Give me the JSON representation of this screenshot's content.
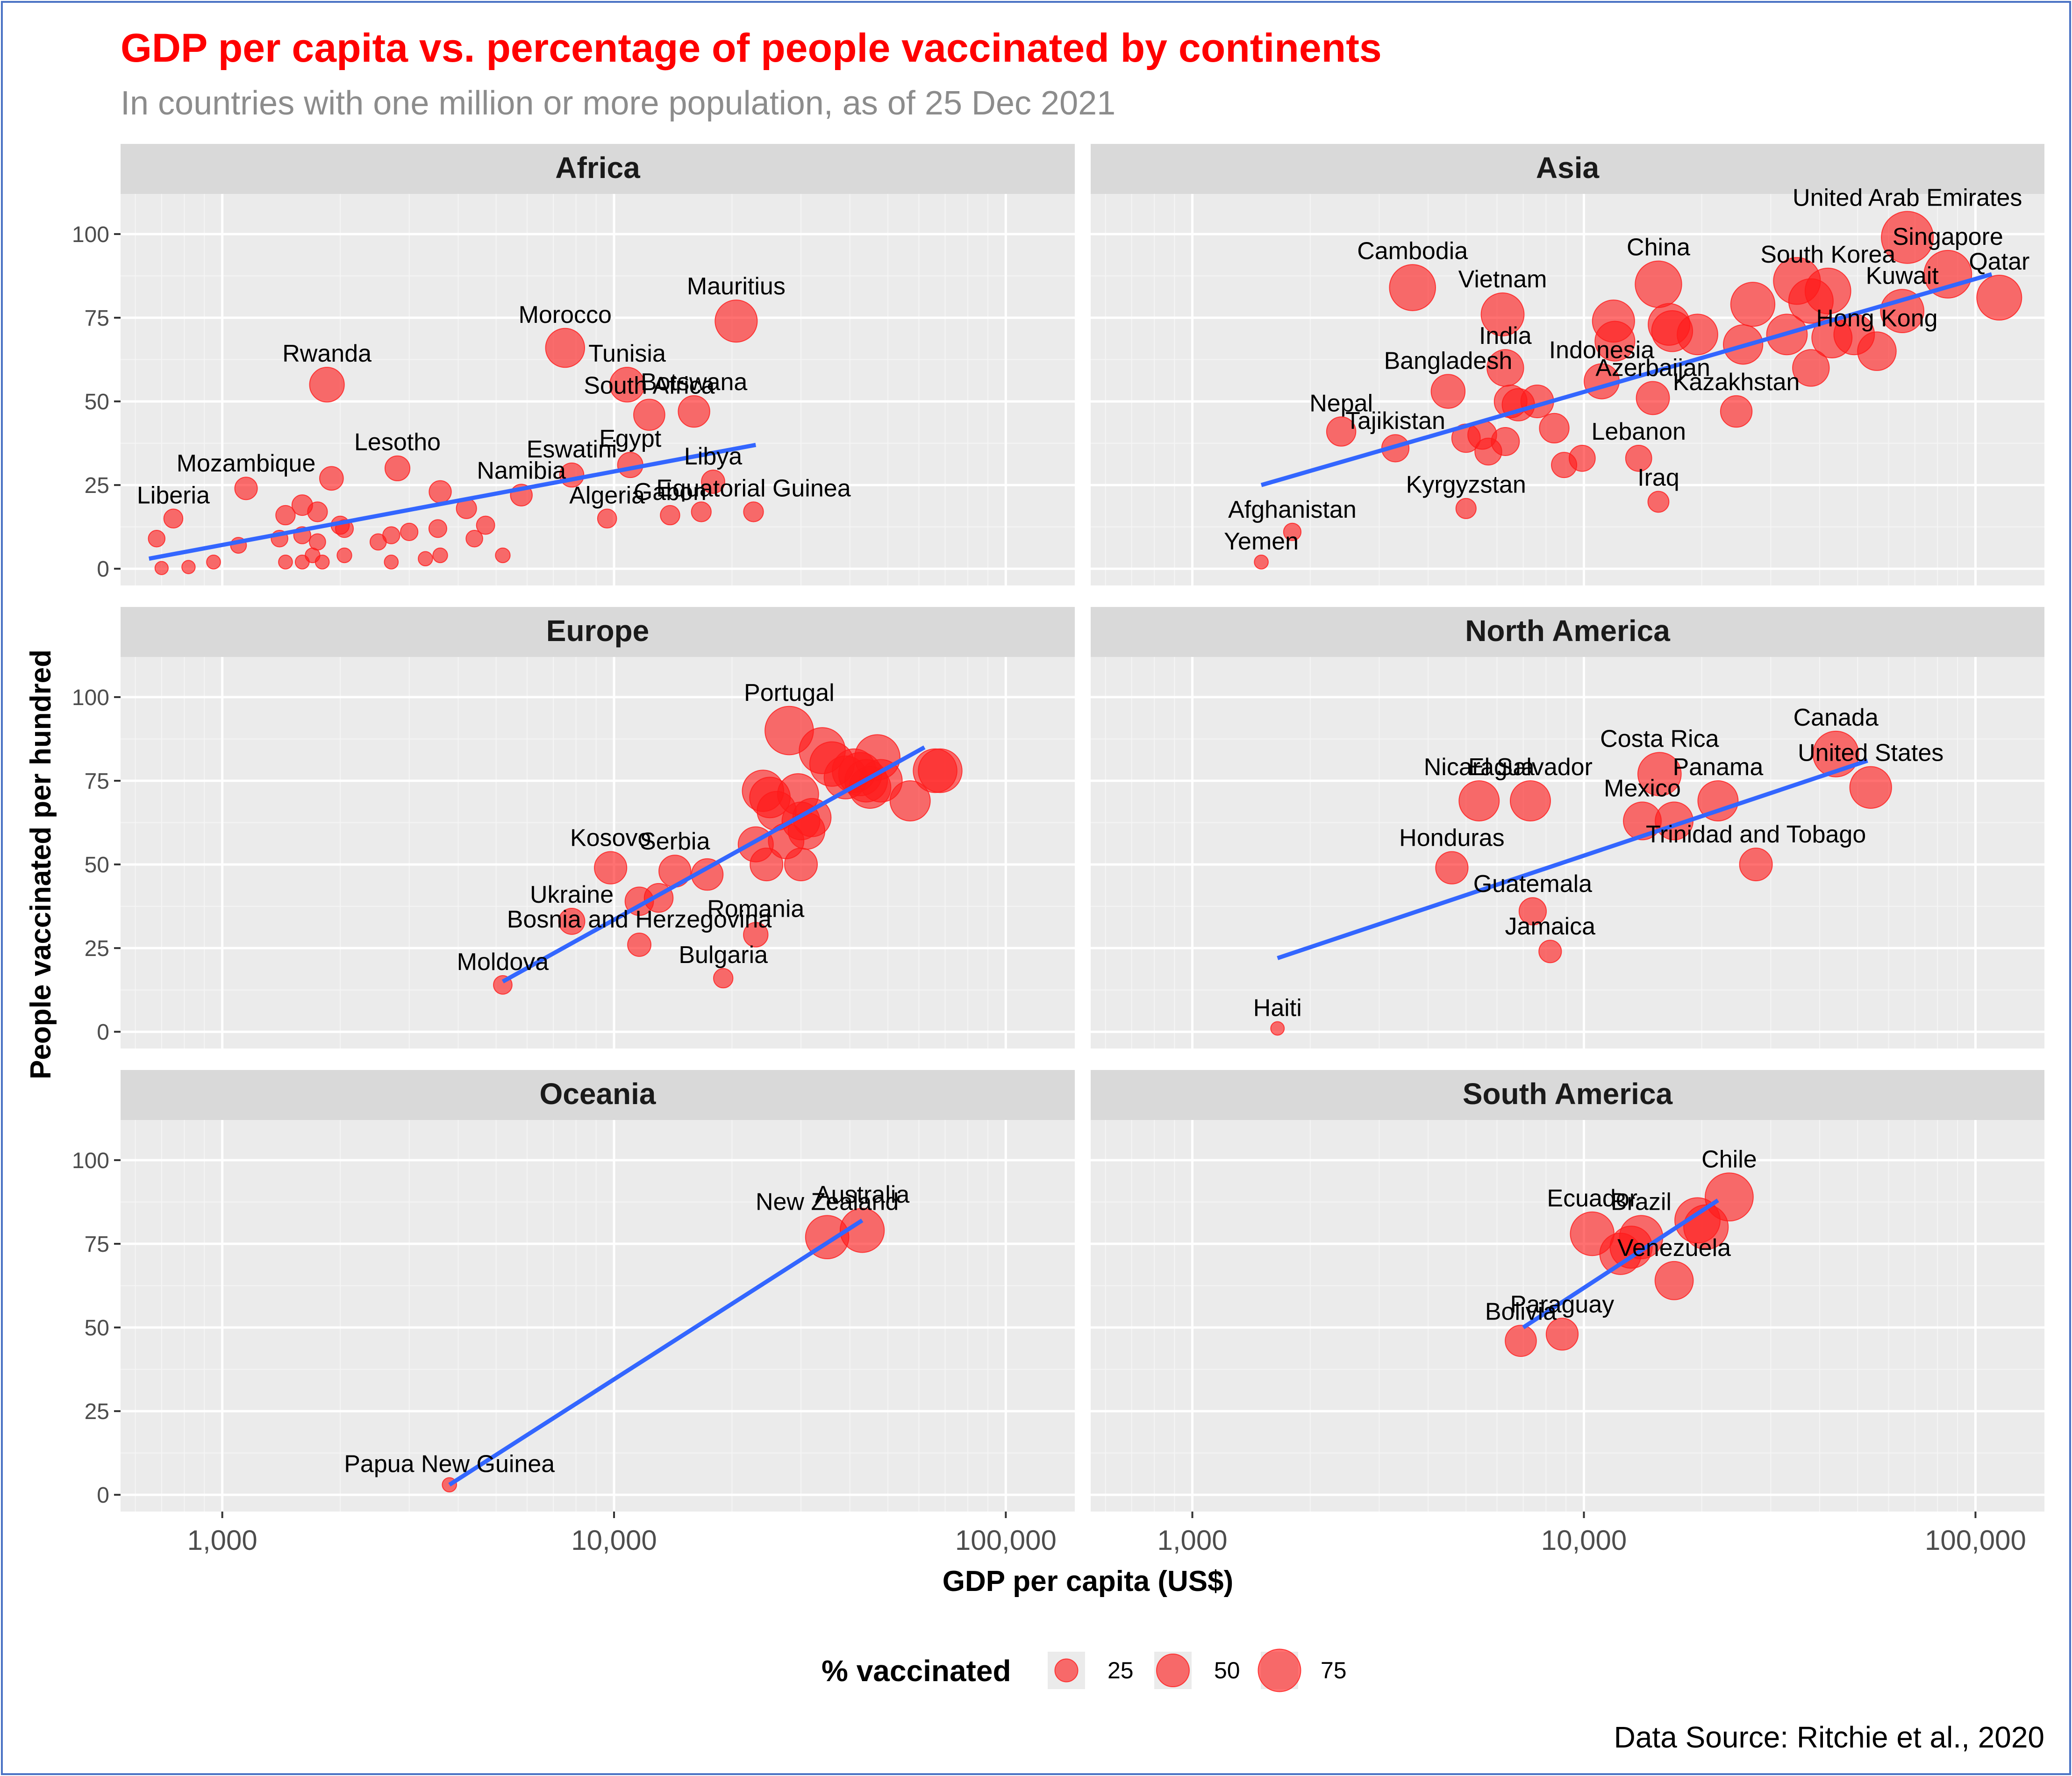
{
  "chart_data": {
    "type": "scatter",
    "title": "GDP per capita vs. percentage of people vaccinated by continents",
    "subtitle": "In countries with one million or more population, as of 25 Dec 2021",
    "xlabel": "GDP per capita (US$)",
    "ylabel": "People vaccinated per hundred",
    "x_scale": "log10",
    "xlim": [
      550,
      150000
    ],
    "ylim": [
      -5,
      112
    ],
    "x_ticks": [
      1000,
      10000,
      100000
    ],
    "x_tick_labels": [
      "1,000",
      "10,000",
      "100,000"
    ],
    "y_ticks": [
      0,
      25,
      50,
      75,
      100
    ],
    "y_tick_labels": [
      "0",
      "25",
      "50",
      "75",
      "100"
    ],
    "legend_title": "% vaccinated",
    "legend_position": "bottom",
    "legend_entries": [
      {
        "value": 25,
        "label": "25"
      },
      {
        "value": 50,
        "label": "50"
      },
      {
        "value": 75,
        "label": "75"
      }
    ],
    "caption": "Data Source: Ritchie et al., 2020",
    "colors": {
      "points": "#ff1a1a",
      "trend": "#3366ff",
      "title": "#ff0000",
      "subtitle": "#8c8c8c",
      "panel_bg": "#ebebeb",
      "strip_bg": "#d9d9d9"
    },
    "panels": [
      {
        "name": "Africa",
        "trend": {
          "x": [
            650,
            23000
          ],
          "y": [
            3,
            37
          ]
        },
        "points": [
          {
            "label": "Mauritius",
            "x": 20500,
            "y": 74
          },
          {
            "label": "Morocco",
            "x": 7500,
            "y": 66
          },
          {
            "label": "Tunisia",
            "x": 10800,
            "y": 55
          },
          {
            "label": "Rwanda",
            "x": 1850,
            "y": 55
          },
          {
            "label": "Botswana",
            "x": 16000,
            "y": 47
          },
          {
            "label": "South Africa",
            "x": 12300,
            "y": 46
          },
          {
            "label": "Lesotho",
            "x": 2800,
            "y": 30
          },
          {
            "label": "Egypt",
            "x": 11000,
            "y": 31
          },
          {
            "label": "Eswatini",
            "x": 7800,
            "y": 28
          },
          {
            "label": "Libya",
            "x": 17900,
            "y": 26
          },
          {
            "label": "Mozambique",
            "x": 1150,
            "y": 24
          },
          {
            "label": "Namibia",
            "x": 5800,
            "y": 22
          },
          {
            "label": "Gabon",
            "x": 13900,
            "y": 16
          },
          {
            "label": "Equatorial Guinea",
            "x": 22700,
            "y": 17
          },
          {
            "label": "Algeria",
            "x": 9600,
            "y": 15
          },
          {
            "label": "Liberia",
            "x": 750,
            "y": 15
          },
          {
            "label": "",
            "x": 16700,
            "y": 17
          },
          {
            "label": "",
            "x": 3600,
            "y": 23
          },
          {
            "label": "",
            "x": 1900,
            "y": 27
          },
          {
            "label": "",
            "x": 4200,
            "y": 18
          },
          {
            "label": "",
            "x": 4700,
            "y": 13
          },
          {
            "label": "",
            "x": 1600,
            "y": 19
          },
          {
            "label": "",
            "x": 1750,
            "y": 17
          },
          {
            "label": "",
            "x": 1450,
            "y": 16
          },
          {
            "label": "",
            "x": 2000,
            "y": 13
          },
          {
            "label": "",
            "x": 2050,
            "y": 12
          },
          {
            "label": "",
            "x": 3000,
            "y": 11
          },
          {
            "label": "",
            "x": 2700,
            "y": 10
          },
          {
            "label": "",
            "x": 3550,
            "y": 12
          },
          {
            "label": "",
            "x": 4400,
            "y": 9
          },
          {
            "label": "",
            "x": 680,
            "y": 9
          },
          {
            "label": "",
            "x": 1100,
            "y": 7
          },
          {
            "label": "",
            "x": 1400,
            "y": 9
          },
          {
            "label": "",
            "x": 1600,
            "y": 10
          },
          {
            "label": "",
            "x": 2500,
            "y": 8
          },
          {
            "label": "",
            "x": 1750,
            "y": 8
          },
          {
            "label": "",
            "x": 1700,
            "y": 4
          },
          {
            "label": "",
            "x": 2050,
            "y": 4
          },
          {
            "label": "",
            "x": 3600,
            "y": 4
          },
          {
            "label": "",
            "x": 5200,
            "y": 4
          },
          {
            "label": "",
            "x": 1450,
            "y": 2
          },
          {
            "label": "",
            "x": 1600,
            "y": 2
          },
          {
            "label": "",
            "x": 1800,
            "y": 2
          },
          {
            "label": "",
            "x": 2700,
            "y": 2
          },
          {
            "label": "",
            "x": 3300,
            "y": 3
          },
          {
            "label": "",
            "x": 950,
            "y": 2
          },
          {
            "label": "",
            "x": 820,
            "y": 0.5
          },
          {
            "label": "",
            "x": 700,
            "y": 0.2
          }
        ]
      },
      {
        "name": "Asia",
        "trend": {
          "x": [
            1500,
            110000
          ],
          "y": [
            25,
            88
          ]
        },
        "points": [
          {
            "label": "United Arab Emirates",
            "x": 67000,
            "y": 99
          },
          {
            "label": "Singapore",
            "x": 85000,
            "y": 88
          },
          {
            "label": "Qatar",
            "x": 115000,
            "y": 81
          },
          {
            "label": "China",
            "x": 15500,
            "y": 85
          },
          {
            "label": "South Korea",
            "x": 42000,
            "y": 83
          },
          {
            "label": "Cambodia",
            "x": 3650,
            "y": 84
          },
          {
            "label": "Kuwait",
            "x": 65000,
            "y": 77
          },
          {
            "label": "Vietnam",
            "x": 6200,
            "y": 76
          },
          {
            "label": "Hong Kong",
            "x": 56000,
            "y": 65
          },
          {
            "label": "India",
            "x": 6300,
            "y": 60
          },
          {
            "label": "Indonesia",
            "x": 11100,
            "y": 56
          },
          {
            "label": "Azerbaijan",
            "x": 15000,
            "y": 51
          },
          {
            "label": "Bangladesh",
            "x": 4500,
            "y": 53
          },
          {
            "label": "Kazakhstan",
            "x": 24500,
            "y": 47
          },
          {
            "label": "Nepal",
            "x": 2400,
            "y": 41
          },
          {
            "label": "Tajikistan",
            "x": 3300,
            "y": 36
          },
          {
            "label": "Lebanon",
            "x": 13800,
            "y": 33
          },
          {
            "label": "Iraq",
            "x": 15500,
            "y": 20
          },
          {
            "label": "Kyrgyzstan",
            "x": 5000,
            "y": 18
          },
          {
            "label": "Afghanistan",
            "x": 1800,
            "y": 11
          },
          {
            "label": "Yemen",
            "x": 1500,
            "y": 2
          },
          {
            "label": "",
            "x": 27000,
            "y": 79
          },
          {
            "label": "",
            "x": 35000,
            "y": 86
          },
          {
            "label": "",
            "x": 38000,
            "y": 80
          },
          {
            "label": "",
            "x": 49000,
            "y": 70
          },
          {
            "label": "",
            "x": 43000,
            "y": 69
          },
          {
            "label": "",
            "x": 33000,
            "y": 70
          },
          {
            "label": "",
            "x": 38000,
            "y": 60
          },
          {
            "label": "",
            "x": 16500,
            "y": 73
          },
          {
            "label": "",
            "x": 16800,
            "y": 71
          },
          {
            "label": "",
            "x": 19500,
            "y": 70
          },
          {
            "label": "",
            "x": 11900,
            "y": 74
          },
          {
            "label": "",
            "x": 12000,
            "y": 68
          },
          {
            "label": "",
            "x": 25500,
            "y": 67
          },
          {
            "label": "",
            "x": 6500,
            "y": 50
          },
          {
            "label": "",
            "x": 6800,
            "y": 49
          },
          {
            "label": "",
            "x": 7600,
            "y": 50
          },
          {
            "label": "",
            "x": 5500,
            "y": 40
          },
          {
            "label": "",
            "x": 6300,
            "y": 38
          },
          {
            "label": "",
            "x": 5000,
            "y": 39
          },
          {
            "label": "",
            "x": 5700,
            "y": 35
          },
          {
            "label": "",
            "x": 8400,
            "y": 42
          },
          {
            "label": "",
            "x": 8900,
            "y": 31
          },
          {
            "label": "",
            "x": 9900,
            "y": 33
          }
        ]
      },
      {
        "name": "Europe",
        "trend": {
          "x": [
            5200,
            62000
          ],
          "y": [
            15,
            85
          ]
        },
        "points": [
          {
            "label": "Portugal",
            "x": 28000,
            "y": 90
          },
          {
            "label": "Kosovo",
            "x": 9800,
            "y": 49
          },
          {
            "label": "Serbia",
            "x": 14300,
            "y": 48
          },
          {
            "label": "Romania",
            "x": 23000,
            "y": 29
          },
          {
            "label": "Ukraine",
            "x": 7800,
            "y": 33
          },
          {
            "label": "Bosnia and Herzegovina",
            "x": 11600,
            "y": 26
          },
          {
            "label": "Moldova",
            "x": 5200,
            "y": 14
          },
          {
            "label": "Bulgaria",
            "x": 19000,
            "y": 16
          },
          {
            "label": "",
            "x": 34000,
            "y": 84
          },
          {
            "label": "",
            "x": 36000,
            "y": 80
          },
          {
            "label": "",
            "x": 39000,
            "y": 76
          },
          {
            "label": "",
            "x": 41000,
            "y": 78
          },
          {
            "label": "",
            "x": 44000,
            "y": 75
          },
          {
            "label": "",
            "x": 45000,
            "y": 73
          },
          {
            "label": "",
            "x": 47000,
            "y": 82
          },
          {
            "label": "",
            "x": 48000,
            "y": 75
          },
          {
            "label": "",
            "x": 42500,
            "y": 77
          },
          {
            "label": "",
            "x": 57000,
            "y": 69
          },
          {
            "label": "",
            "x": 66000,
            "y": 78
          },
          {
            "label": "",
            "x": 68000,
            "y": 78
          },
          {
            "label": "",
            "x": 24000,
            "y": 72
          },
          {
            "label": "",
            "x": 25000,
            "y": 70
          },
          {
            "label": "",
            "x": 26000,
            "y": 66
          },
          {
            "label": "",
            "x": 27500,
            "y": 57
          },
          {
            "label": "",
            "x": 29500,
            "y": 71
          },
          {
            "label": "",
            "x": 30000,
            "y": 63
          },
          {
            "label": "",
            "x": 32000,
            "y": 64
          },
          {
            "label": "",
            "x": 31000,
            "y": 60
          },
          {
            "label": "",
            "x": 23000,
            "y": 56
          },
          {
            "label": "",
            "x": 24500,
            "y": 50
          },
          {
            "label": "",
            "x": 30000,
            "y": 50
          },
          {
            "label": "",
            "x": 17300,
            "y": 47
          },
          {
            "label": "",
            "x": 11600,
            "y": 39
          },
          {
            "label": "",
            "x": 13000,
            "y": 40
          }
        ]
      },
      {
        "name": "North America",
        "trend": {
          "x": [
            1650,
            53000
          ],
          "y": [
            22,
            81
          ]
        },
        "points": [
          {
            "label": "Canada",
            "x": 44000,
            "y": 83
          },
          {
            "label": "Costa Rica",
            "x": 15600,
            "y": 77
          },
          {
            "label": "United States",
            "x": 54000,
            "y": 73
          },
          {
            "label": "Panama",
            "x": 22000,
            "y": 69
          },
          {
            "label": "El Salvador",
            "x": 7300,
            "y": 69
          },
          {
            "label": "Nicaragua",
            "x": 5400,
            "y": 69
          },
          {
            "label": "Mexico",
            "x": 14100,
            "y": 63
          },
          {
            "label": "Trinidad and Tobago",
            "x": 27500,
            "y": 50
          },
          {
            "label": "Honduras",
            "x": 4600,
            "y": 49
          },
          {
            "label": "Guatemala",
            "x": 7400,
            "y": 36
          },
          {
            "label": "Jamaica",
            "x": 8200,
            "y": 24
          },
          {
            "label": "Haiti",
            "x": 1650,
            "y": 1
          },
          {
            "label": "",
            "x": 17000,
            "y": 63
          }
        ]
      },
      {
        "name": "Oceania",
        "trend": {
          "x": [
            3800,
            43000
          ],
          "y": [
            3,
            82
          ]
        },
        "points": [
          {
            "label": "Australia",
            "x": 43000,
            "y": 79
          },
          {
            "label": "New Zealand",
            "x": 35000,
            "y": 77
          },
          {
            "label": "Papua New Guinea",
            "x": 3800,
            "y": 3
          }
        ]
      },
      {
        "name": "South America",
        "trend": {
          "x": [
            7000,
            22000
          ],
          "y": [
            50,
            88
          ]
        },
        "points": [
          {
            "label": "Chile",
            "x": 23500,
            "y": 89
          },
          {
            "label": "Ecuador",
            "x": 10500,
            "y": 78
          },
          {
            "label": "Brazil",
            "x": 14000,
            "y": 77
          },
          {
            "label": "Venezuela",
            "x": 17000,
            "y": 64
          },
          {
            "label": "Paraguay",
            "x": 8800,
            "y": 48
          },
          {
            "label": "Bolivia",
            "x": 6900,
            "y": 46
          },
          {
            "label": "",
            "x": 19500,
            "y": 82
          },
          {
            "label": "",
            "x": 20500,
            "y": 80
          },
          {
            "label": "",
            "x": 12400,
            "y": 72
          },
          {
            "label": "",
            "x": 13200,
            "y": 74
          }
        ]
      }
    ]
  }
}
